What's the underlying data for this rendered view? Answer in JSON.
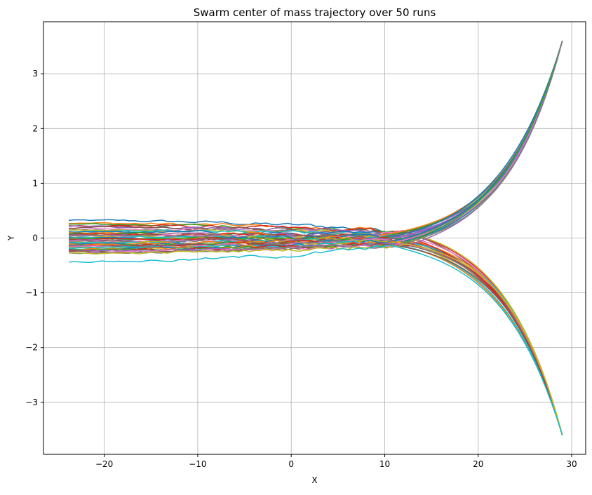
{
  "chart_data": {
    "type": "line",
    "title": "Swarm center of mass trajectory over 50 runs",
    "xlabel": "X",
    "ylabel": "Y",
    "xlim": [
      -26.5,
      31.5
    ],
    "ylim": [
      -3.95,
      3.95
    ],
    "grid": true,
    "xticks": [
      -20,
      -10,
      0,
      10,
      20,
      30
    ],
    "yticks": [
      -3,
      -2,
      -1,
      0,
      1,
      2,
      3
    ],
    "xtick_labels": [
      "−20",
      "−10",
      "0",
      "10",
      "20",
      "30"
    ],
    "ytick_labels": [
      "−3",
      "−2",
      "−1",
      "0",
      "1",
      "2",
      "3"
    ],
    "colors": [
      "#1f77b4",
      "#ff7f0e",
      "#2ca02c",
      "#d62728",
      "#9467bd",
      "#8c564b",
      "#e377c2",
      "#7f7f7f",
      "#bcbd22",
      "#17becf"
    ],
    "run_count": 50,
    "x_start": -23.8,
    "x_end": 29.0,
    "start_y": [
      0.32,
      0.27,
      0.25,
      0.23,
      0.21,
      0.19,
      0.17,
      0.15,
      0.14,
      0.12,
      0.11,
      0.1,
      0.08,
      0.07,
      0.06,
      0.05,
      0.04,
      0.03,
      0.02,
      0.01,
      0.0,
      -0.01,
      -0.02,
      -0.03,
      -0.04,
      -0.05,
      -0.06,
      -0.07,
      -0.08,
      -0.09,
      -0.1,
      -0.11,
      -0.12,
      -0.13,
      -0.14,
      -0.15,
      -0.16,
      -0.17,
      -0.18,
      -0.19,
      -0.2,
      -0.21,
      -0.22,
      -0.23,
      -0.24,
      -0.25,
      -0.26,
      -0.27,
      -0.28,
      -0.43
    ],
    "branch_up": [
      true,
      false,
      true,
      false,
      true,
      true,
      false,
      true,
      false,
      true,
      false,
      true,
      true,
      false,
      true,
      false,
      false,
      true,
      true,
      false,
      true,
      false,
      true,
      false,
      true,
      false,
      true,
      true,
      false,
      false,
      true,
      false,
      true,
      false,
      true,
      false,
      true,
      false,
      true,
      false,
      true,
      false,
      true,
      false,
      true,
      false,
      false,
      true,
      false,
      false
    ],
    "end_y": 3.6
  }
}
